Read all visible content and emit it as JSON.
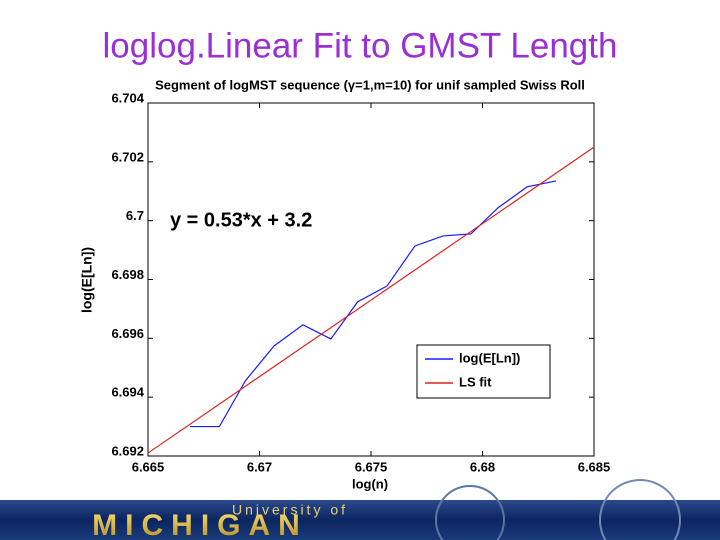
{
  "slide_title": "loglog.Linear Fit to GMST Length",
  "chart_data": {
    "type": "line",
    "title": "Segment of logMST sequence (γ=1,m=10) for unif sampled Swiss Roll",
    "x_label": "log(n)",
    "y_label": "log(E[Ln])",
    "annotation": "y = 0.53*x + 3.2",
    "xlim": [
      6.665,
      6.685
    ],
    "xticks": [
      6.665,
      6.67,
      6.675,
      6.68,
      6.685
    ],
    "ylim": [
      6.692,
      6.704
    ],
    "yticks": [
      6.692,
      6.694,
      6.696,
      6.698,
      6.7,
      6.702,
      6.704
    ],
    "legend": "lower right",
    "series": [
      {
        "name": "log(E[Ln])",
        "color": "#1a1aff",
        "x": [
          6.66688,
          6.6682,
          6.66937,
          6.67065,
          6.67195,
          6.6732,
          6.6744,
          6.67572,
          6.67697,
          6.67823,
          6.67948,
          6.6807,
          6.682,
          6.6833
        ],
        "values": [
          6.693,
          6.693,
          6.69456,
          6.69574,
          6.69646,
          6.69598,
          6.69724,
          6.69778,
          6.69914,
          6.69948,
          6.69955,
          6.70044,
          6.70115,
          6.70135
        ]
      },
      {
        "name": "LS fit",
        "color": "#e02020",
        "x": [
          6.665,
          6.685
        ],
        "values": [
          6.6921,
          6.7025
        ]
      }
    ]
  },
  "footer": {
    "university": "University of",
    "name": "MICHIGAN"
  }
}
